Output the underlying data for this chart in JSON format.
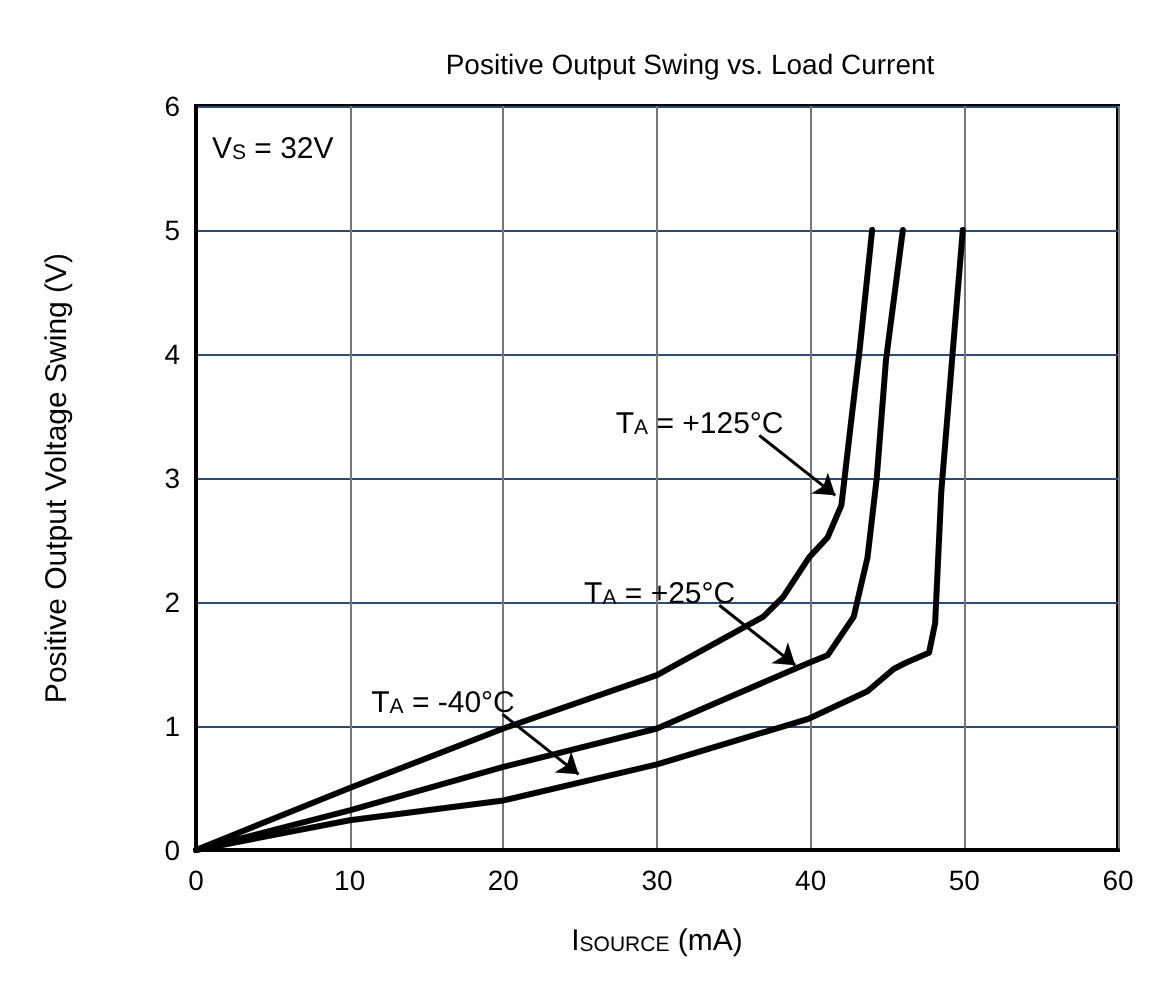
{
  "chart_data": {
    "type": "line",
    "title": "Positive Output Swing vs. Load Current",
    "xlabel": "I$_{SOURCE}$ (mA)",
    "ylabel": "Positive Output Voltage Swing (V)",
    "xlim": [
      0,
      60
    ],
    "xticks": [
      0,
      10,
      20,
      30,
      40,
      50,
      60
    ],
    "ylim": [
      0,
      6
    ],
    "yticks": [
      0,
      1,
      2,
      3,
      4,
      5,
      6
    ],
    "grid": true,
    "marker": "none",
    "line_style": "solid",
    "series": [
      {
        "color": "#000000",
        "x": [
          0,
          10,
          20,
          30,
          36.9,
          38.2,
          39.9,
          41.1,
          42.0,
          42.6,
          43.2,
          44.0
        ],
        "values": [
          0,
          0.5,
          0.98,
          1.41,
          1.88,
          2.04,
          2.36,
          2.52,
          2.78,
          3.42,
          4.05,
          5
        ]
      },
      {
        "color": "#000000",
        "x": [
          0,
          10,
          20,
          30,
          36.9,
          39.9,
          41.1,
          42.8,
          43.7,
          44.3,
          44.9,
          46.0
        ],
        "values": [
          0,
          0.32,
          0.67,
          0.98,
          1.35,
          1.51,
          1.57,
          1.88,
          2.36,
          3.0,
          3.95,
          5
        ]
      },
      {
        "color": "#000000",
        "x": [
          0,
          10,
          20,
          30,
          39.9,
          43.7,
          45.4,
          46.2,
          47.7,
          48.1,
          48.5,
          49.2,
          49.9
        ],
        "values": [
          0,
          0.24,
          0.4,
          0.69,
          1.06,
          1.28,
          1.46,
          1.51,
          1.59,
          1.83,
          2.89,
          3.95,
          5
        ]
      }
    ],
    "annotations": [
      "V$_{S}$ = 32V",
      {
        "text": "T$_{A}$ = +125°C",
        "x": 41.6,
        "y": 2.86
      },
      {
        "text": "T$_{A}$ = +25°C",
        "x": 39.0,
        "y": 1.49
      },
      {
        "text": "T$_{A}$ = -40°C",
        "x": 24.9,
        "y": 0.61
      }
    ]
  }
}
